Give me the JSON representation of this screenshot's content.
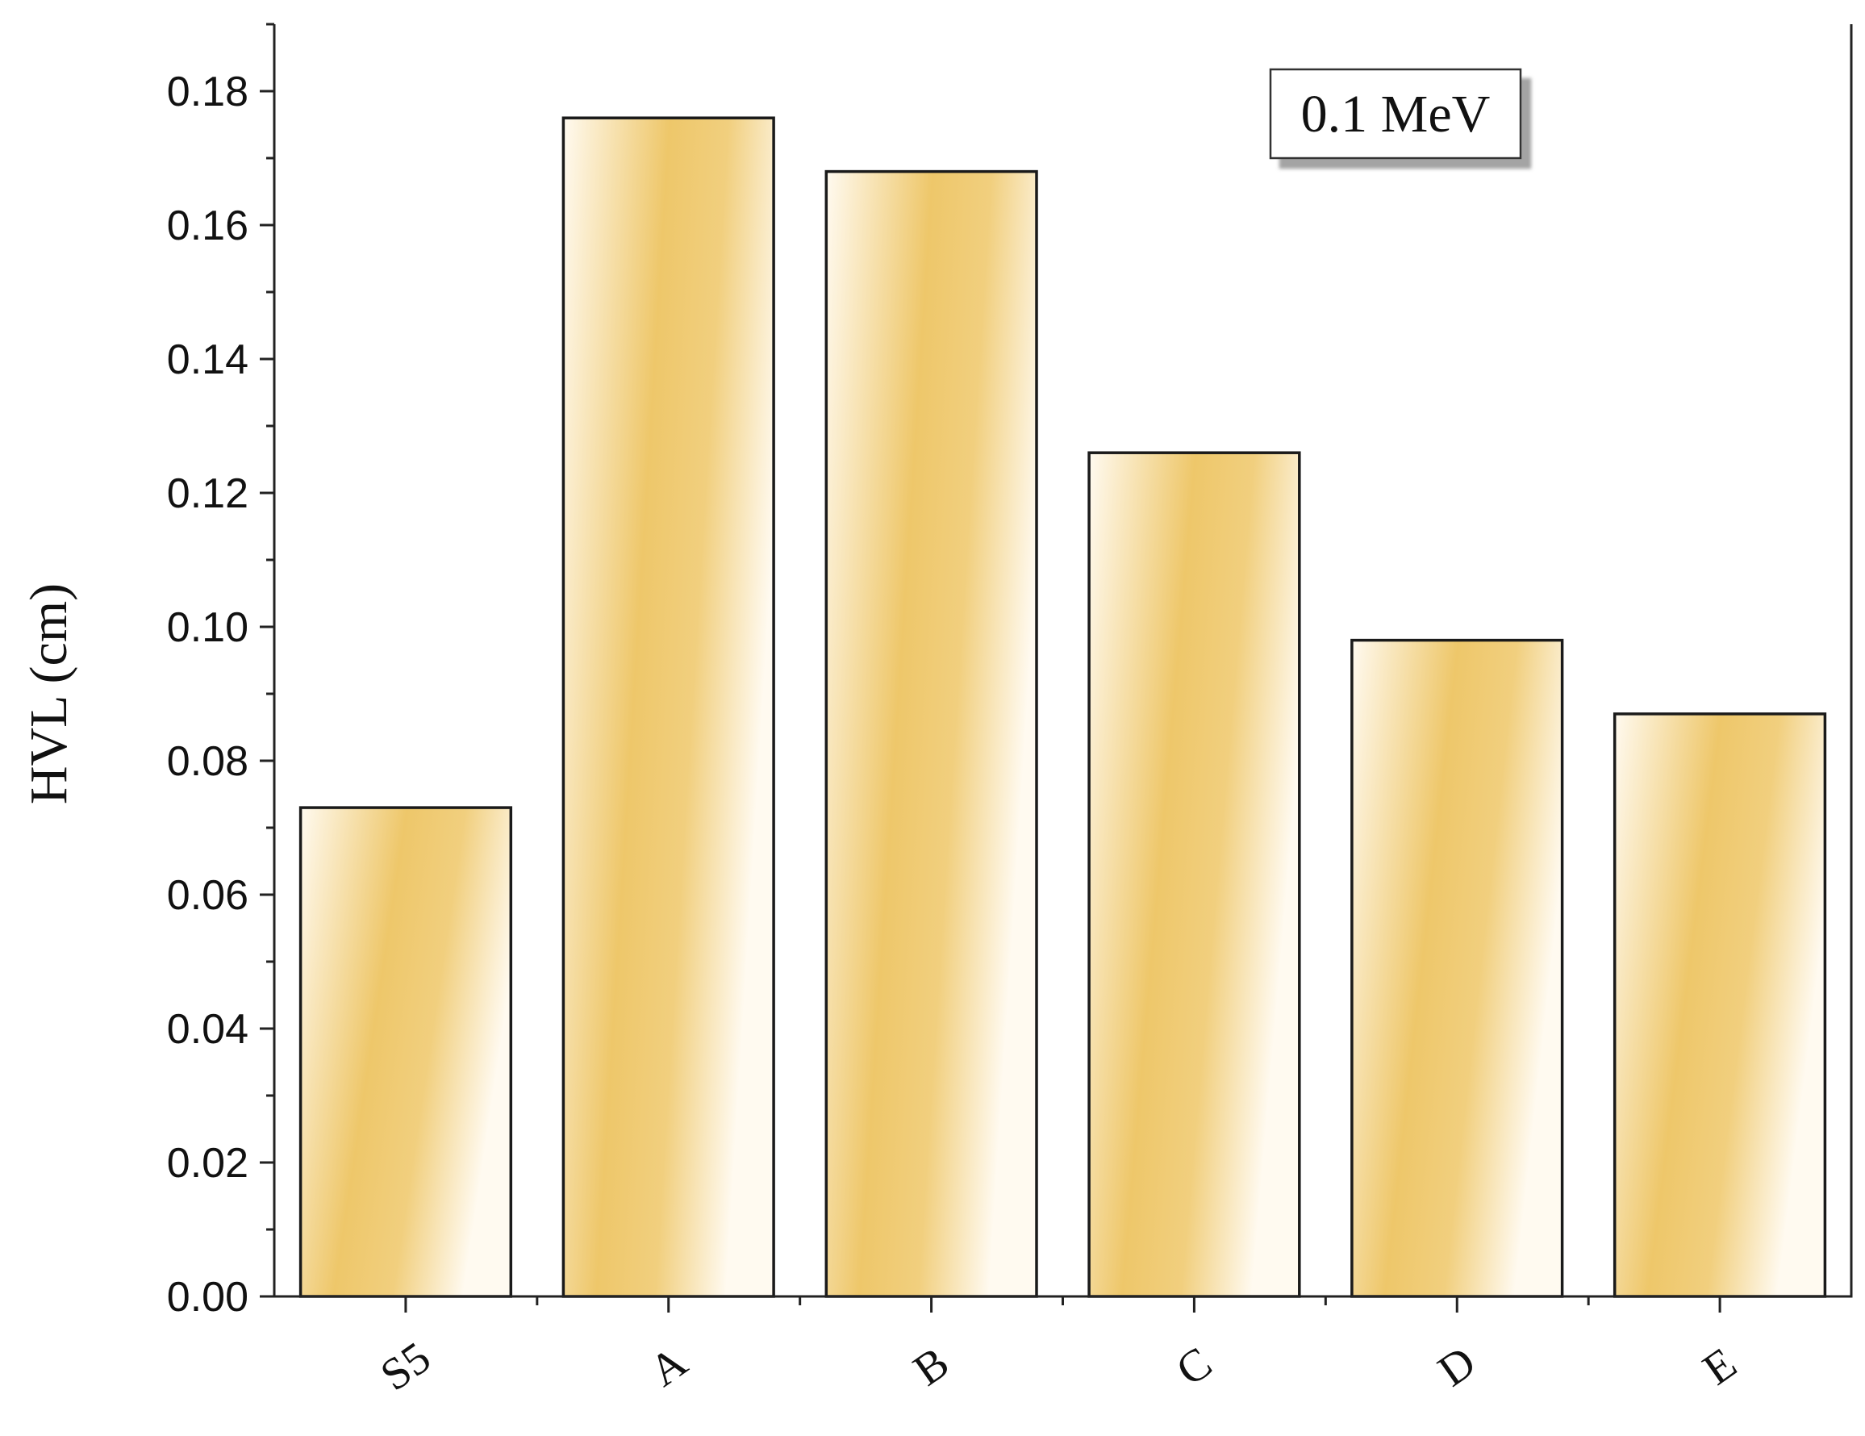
{
  "chart_data": {
    "type": "bar",
    "categories": [
      "S5",
      "A",
      "B",
      "C",
      "D",
      "E"
    ],
    "values": [
      0.073,
      0.176,
      0.168,
      0.126,
      0.098,
      0.087
    ],
    "title": "",
    "xlabel": "",
    "ylabel": "HVL (cm)",
    "ylim": [
      0,
      0.19
    ],
    "yticks": [
      "0.00",
      "0.02",
      "0.04",
      "0.06",
      "0.08",
      "0.10",
      "0.12",
      "0.14",
      "0.16",
      "0.18"
    ],
    "annotation": "0.1 MeV",
    "grid": false,
    "colors": {
      "bar_light": "#fdf6e3",
      "bar_dark": "#eec76a",
      "frame": "#222222"
    }
  }
}
